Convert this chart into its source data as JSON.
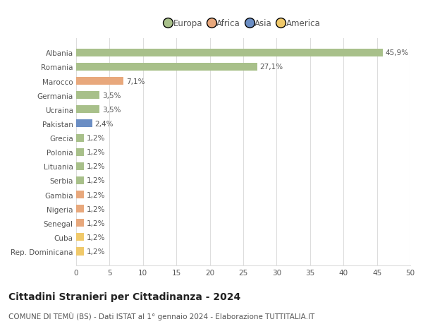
{
  "categories": [
    "Rep. Dominicana",
    "Cuba",
    "Senegal",
    "Nigeria",
    "Gambia",
    "Serbia",
    "Lituania",
    "Polonia",
    "Grecia",
    "Pakistan",
    "Ucraina",
    "Germania",
    "Marocco",
    "Romania",
    "Albania"
  ],
  "values": [
    1.2,
    1.2,
    1.2,
    1.2,
    1.2,
    1.2,
    1.2,
    1.2,
    1.2,
    2.4,
    3.5,
    3.5,
    7.1,
    27.1,
    45.9
  ],
  "colors": [
    "#f0c96a",
    "#f0c96a",
    "#e8a87c",
    "#e8a87c",
    "#e8a87c",
    "#a8c08a",
    "#a8c08a",
    "#a8c08a",
    "#a8c08a",
    "#6b8ec4",
    "#a8c08a",
    "#a8c08a",
    "#e8a87c",
    "#a8c08a",
    "#a8c08a"
  ],
  "labels": [
    "1,2%",
    "1,2%",
    "1,2%",
    "1,2%",
    "1,2%",
    "1,2%",
    "1,2%",
    "1,2%",
    "1,2%",
    "2,4%",
    "3,5%",
    "3,5%",
    "7,1%",
    "27,1%",
    "45,9%"
  ],
  "legend_names": [
    "Europa",
    "Africa",
    "Asia",
    "America"
  ],
  "legend_colors": [
    "#a8c08a",
    "#e8a87c",
    "#6b8ec4",
    "#f0c96a"
  ],
  "xlim": [
    0,
    50
  ],
  "xticks": [
    0,
    5,
    10,
    15,
    20,
    25,
    30,
    35,
    40,
    45,
    50
  ],
  "title": "Cittadini Stranieri per Cittadinanza - 2024",
  "subtitle": "COMUNE DI TEMÙ (BS) - Dati ISTAT al 1° gennaio 2024 - Elaborazione TUTTITALIA.IT",
  "background_color": "#ffffff",
  "bar_height": 0.55,
  "grid_color": "#dddddd",
  "label_fontsize": 7.5,
  "tick_fontsize": 7.5,
  "title_fontsize": 10,
  "subtitle_fontsize": 7.5,
  "text_color": "#555555"
}
